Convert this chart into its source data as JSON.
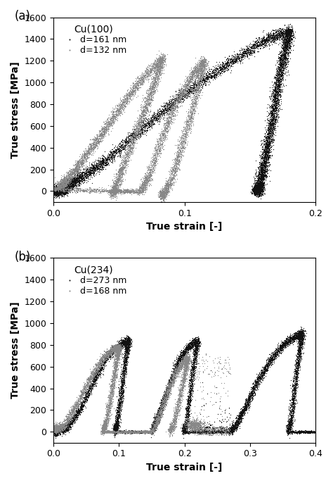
{
  "panel_a": {
    "title": "Cu(100)",
    "series": [
      {
        "label": "d=161 nm",
        "color": "#111111"
      },
      {
        "label": "d=132 nm",
        "color": "#888888"
      }
    ],
    "xlim": [
      0.0,
      0.2
    ],
    "ylim": [
      -100,
      1600
    ],
    "xticks": [
      0.0,
      0.1,
      0.2
    ],
    "yticks": [
      0,
      200,
      400,
      600,
      800,
      1000,
      1200,
      1400,
      1600
    ],
    "xlabel": "True strain [-]",
    "ylabel": "True stress [MPa]",
    "panel_label": "(a)"
  },
  "panel_b": {
    "title": "Cu(234)",
    "series": [
      {
        "label": "d=273 nm",
        "color": "#111111"
      },
      {
        "label": "d=168 nm",
        "color": "#888888"
      }
    ],
    "xlim": [
      0.0,
      0.4
    ],
    "ylim": [
      -100,
      1600
    ],
    "xticks": [
      0.0,
      0.1,
      0.2,
      0.3,
      0.4
    ],
    "yticks": [
      0,
      200,
      400,
      600,
      800,
      1000,
      1200,
      1400,
      1600
    ],
    "xlabel": "True strain [-]",
    "ylabel": "True stress [MPa]",
    "panel_label": "(b)"
  },
  "figsize": [
    4.74,
    6.86
  ],
  "dpi": 100,
  "marker_size": 0.8,
  "bg_color": "#ffffff"
}
